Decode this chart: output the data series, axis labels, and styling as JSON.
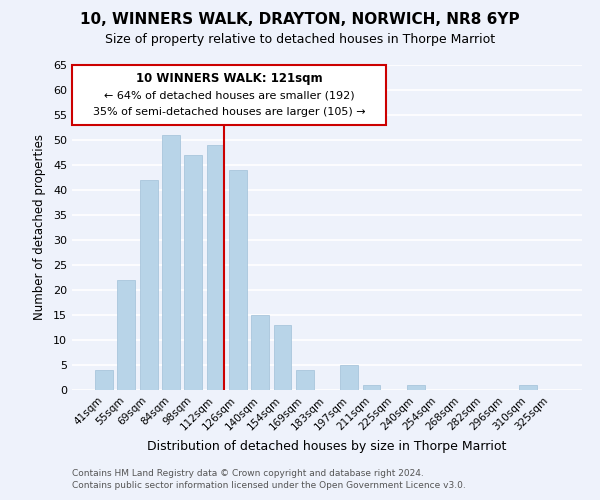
{
  "title": "10, WINNERS WALK, DRAYTON, NORWICH, NR8 6YP",
  "subtitle": "Size of property relative to detached houses in Thorpe Marriot",
  "xlabel": "Distribution of detached houses by size in Thorpe Marriot",
  "ylabel": "Number of detached properties",
  "bar_color": "#b8d4e8",
  "bar_edge_color": "#a0c0d8",
  "highlight_color": "#cc0000",
  "background_color": "#eef2fb",
  "grid_color": "#ffffff",
  "categories": [
    "41sqm",
    "55sqm",
    "69sqm",
    "84sqm",
    "98sqm",
    "112sqm",
    "126sqm",
    "140sqm",
    "154sqm",
    "169sqm",
    "183sqm",
    "197sqm",
    "211sqm",
    "225sqm",
    "240sqm",
    "254sqm",
    "268sqm",
    "282sqm",
    "296sqm",
    "310sqm",
    "325sqm"
  ],
  "values": [
    4,
    22,
    42,
    51,
    47,
    49,
    44,
    15,
    13,
    4,
    0,
    5,
    1,
    0,
    1,
    0,
    0,
    0,
    0,
    1,
    0
  ],
  "highlight_index": 5,
  "ylim": [
    0,
    65
  ],
  "yticks": [
    0,
    5,
    10,
    15,
    20,
    25,
    30,
    35,
    40,
    45,
    50,
    55,
    60,
    65
  ],
  "annotation_title": "10 WINNERS WALK: 121sqm",
  "annotation_line1": "← 64% of detached houses are smaller (192)",
  "annotation_line2": "35% of semi-detached houses are larger (105) →",
  "footer1": "Contains HM Land Registry data © Crown copyright and database right 2024.",
  "footer2": "Contains public sector information licensed under the Open Government Licence v3.0."
}
